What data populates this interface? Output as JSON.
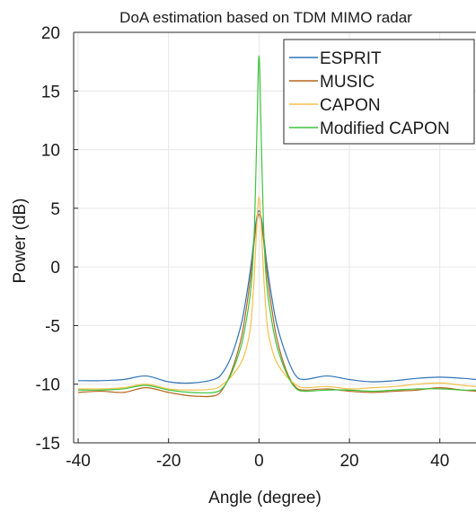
{
  "chart_data": {
    "type": "line",
    "title": "DoA estimation based on TDM MIMO radar",
    "xlabel": "Angle (degree)",
    "ylabel": "Power (dB)",
    "xlim": [
      -41,
      48
    ],
    "ylim": [
      -15,
      20
    ],
    "xticks": [
      -40,
      -20,
      0,
      20,
      40
    ],
    "yticks": [
      20,
      15,
      10,
      5,
      0,
      -5,
      -10,
      -15
    ],
    "grid": true,
    "legend_position": "top-right",
    "series": [
      {
        "name": "ESPRIT",
        "color": "#2f73b8",
        "x": [
          -40,
          -35,
          -30,
          -25,
          -20,
          -15,
          -10,
          -8,
          -6,
          -4,
          -3,
          -2,
          -1.5,
          -1,
          -0.5,
          0,
          0.5,
          1,
          1.5,
          2,
          3,
          4,
          6,
          8,
          10,
          15,
          20,
          25,
          30,
          35,
          40,
          45,
          48
        ],
        "y": [
          -9.7,
          -9.7,
          -9.6,
          -9.3,
          -9.8,
          -9.9,
          -9.6,
          -9.0,
          -7.5,
          -5.0,
          -3.0,
          -0.5,
          1.0,
          2.8,
          4.2,
          4.8,
          4.2,
          2.8,
          1.0,
          -0.5,
          -3.0,
          -5.0,
          -7.5,
          -9.2,
          -9.6,
          -9.3,
          -9.6,
          -9.8,
          -9.7,
          -9.5,
          -9.4,
          -9.5,
          -9.6
        ]
      },
      {
        "name": "MUSIC",
        "color": "#b5651d",
        "x": [
          -40,
          -35,
          -30,
          -25,
          -20,
          -15,
          -10,
          -8,
          -6,
          -4,
          -3,
          -2,
          -1.5,
          -1,
          -0.5,
          0,
          0.5,
          1,
          1.5,
          2,
          3,
          4,
          6,
          8,
          10,
          15,
          20,
          25,
          30,
          35,
          40,
          45,
          48
        ],
        "y": [
          -10.7,
          -10.6,
          -10.7,
          -10.3,
          -10.7,
          -11.0,
          -11.0,
          -10.4,
          -8.8,
          -6.2,
          -4.0,
          -1.3,
          0.5,
          2.3,
          3.8,
          4.5,
          3.8,
          2.3,
          0.5,
          -1.3,
          -4.0,
          -6.2,
          -8.8,
          -10.2,
          -10.5,
          -10.4,
          -10.6,
          -10.7,
          -10.6,
          -10.5,
          -10.3,
          -10.5,
          -10.6
        ]
      },
      {
        "name": "CAPON",
        "color": "#f2c04a",
        "x": [
          -40,
          -35,
          -30,
          -25,
          -20,
          -15,
          -10,
          -8,
          -6,
          -4,
          -3,
          -2,
          -1.5,
          -1,
          -0.5,
          0,
          0.5,
          1,
          1.5,
          2,
          3,
          4,
          6,
          8,
          10,
          15,
          20,
          25,
          30,
          35,
          40,
          45,
          48
        ],
        "y": [
          -10.4,
          -10.4,
          -10.3,
          -10.0,
          -10.4,
          -10.5,
          -10.4,
          -10.0,
          -9.3,
          -8.2,
          -7.2,
          -5.5,
          -3.5,
          -0.5,
          3.5,
          6.0,
          3.5,
          -0.5,
          -3.5,
          -5.5,
          -7.2,
          -8.2,
          -9.3,
          -10.0,
          -10.3,
          -10.2,
          -10.4,
          -10.3,
          -10.2,
          -10.0,
          -9.9,
          -10.1,
          -10.2
        ]
      },
      {
        "name": "Modified CAPON",
        "color": "#3cc43c",
        "x": [
          -40,
          -35,
          -30,
          -25,
          -20,
          -15,
          -10,
          -8,
          -6,
          -4,
          -3,
          -2,
          -1.5,
          -1,
          -0.5,
          0,
          0.5,
          1,
          1.5,
          2,
          3,
          4,
          6,
          8,
          10,
          15,
          20,
          25,
          30,
          35,
          40,
          45,
          48
        ],
        "y": [
          -10.5,
          -10.5,
          -10.4,
          -10.1,
          -10.5,
          -10.7,
          -10.7,
          -10.3,
          -9.0,
          -6.8,
          -5.0,
          -2.5,
          -0.5,
          3.5,
          11.0,
          18.0,
          11.0,
          3.5,
          -0.5,
          -2.5,
          -5.0,
          -6.8,
          -9.0,
          -10.3,
          -10.6,
          -10.5,
          -10.5,
          -10.6,
          -10.5,
          -10.4,
          -10.4,
          -10.5,
          -10.5
        ]
      }
    ]
  }
}
